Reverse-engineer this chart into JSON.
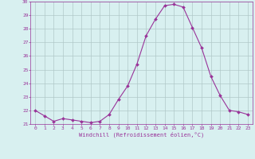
{
  "x": [
    0,
    1,
    2,
    3,
    4,
    5,
    6,
    7,
    8,
    9,
    10,
    11,
    12,
    13,
    14,
    15,
    16,
    17,
    18,
    19,
    20,
    21,
    22,
    23
  ],
  "y": [
    22.0,
    21.6,
    21.2,
    21.4,
    21.3,
    21.2,
    21.1,
    21.2,
    21.7,
    22.8,
    23.8,
    25.4,
    27.5,
    28.7,
    29.7,
    29.8,
    29.6,
    28.1,
    26.6,
    24.5,
    23.1,
    22.0,
    21.9,
    21.7
  ],
  "line_color": "#993399",
  "marker": "D",
  "marker_size": 2,
  "bg_color": "#d8f0f0",
  "grid_color": "#b0c8c8",
  "xlabel": "Windchill (Refroidissement éolien,°C)",
  "xlabel_color": "#993399",
  "tick_color": "#993399",
  "ylim": [
    21,
    30
  ],
  "xlim": [
    -0.5,
    23.5
  ],
  "yticks": [
    21,
    22,
    23,
    24,
    25,
    26,
    27,
    28,
    29,
    30
  ],
  "xticks": [
    0,
    1,
    2,
    3,
    4,
    5,
    6,
    7,
    8,
    9,
    10,
    11,
    12,
    13,
    14,
    15,
    16,
    17,
    18,
    19,
    20,
    21,
    22,
    23
  ]
}
